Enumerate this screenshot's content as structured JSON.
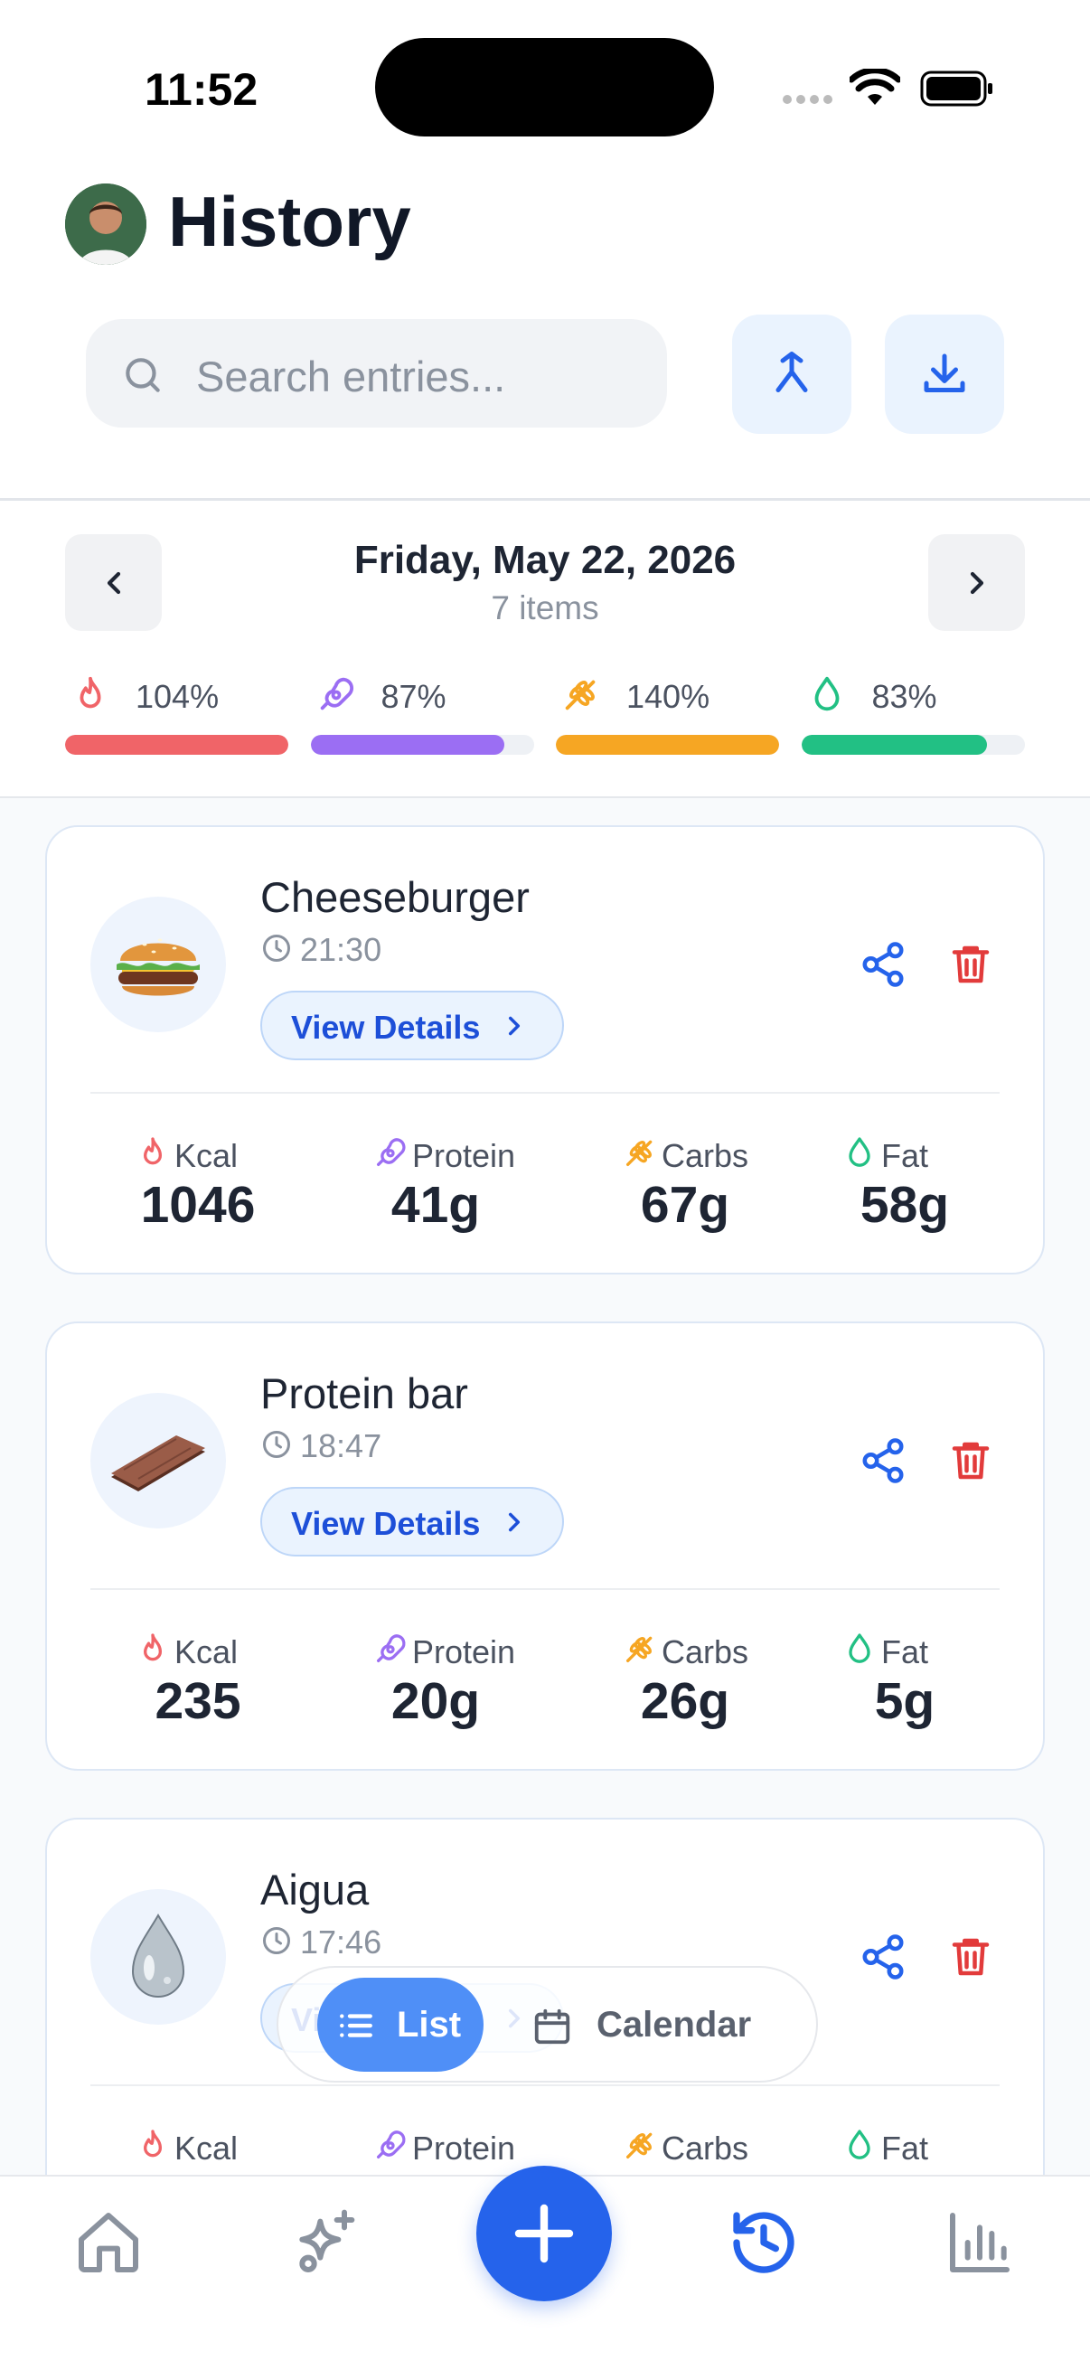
{
  "status_bar": {
    "time": "11:52"
  },
  "header": {
    "title": "History",
    "search_placeholder": "Search entries..."
  },
  "date_nav": {
    "date": "Friday, May 22, 2026",
    "count": "7 items"
  },
  "goals": [
    {
      "icon": "flame",
      "value": 104,
      "label": "104%",
      "color": "#f06468"
    },
    {
      "icon": "protein",
      "value": 87,
      "label": "87%",
      "color": "#9b6ef3"
    },
    {
      "icon": "carbs",
      "value": 140,
      "label": "140%",
      "color": "#f6a623"
    },
    {
      "icon": "fat",
      "value": 83,
      "label": "83%",
      "color": "#22c084"
    }
  ],
  "entries": [
    {
      "name": "Cheeseburger",
      "time": "21:30",
      "image": "burger",
      "action": "View Details",
      "stats": [
        {
          "label": "Kcal",
          "value": "1046"
        },
        {
          "label": "Protein",
          "value": "41g"
        },
        {
          "label": "Carbs",
          "value": "67g"
        },
        {
          "label": "Fat",
          "value": "58g"
        }
      ]
    },
    {
      "name": "Protein bar",
      "time": "18:47",
      "image": "bar",
      "action": "View Details",
      "stats": [
        {
          "label": "Kcal",
          "value": "235"
        },
        {
          "label": "Protein",
          "value": "20g"
        },
        {
          "label": "Carbs",
          "value": "26g"
        },
        {
          "label": "Fat",
          "value": "5g"
        }
      ]
    },
    {
      "name": "Aigua",
      "time": "17:46",
      "image": "water",
      "action": "View Details",
      "stats": [
        {
          "label": "Kcal"
        },
        {
          "label": "Protein"
        },
        {
          "label": "Carbs"
        },
        {
          "label": "Fat"
        }
      ]
    }
  ],
  "view_toggle": [
    "List",
    "Calendar"
  ]
}
